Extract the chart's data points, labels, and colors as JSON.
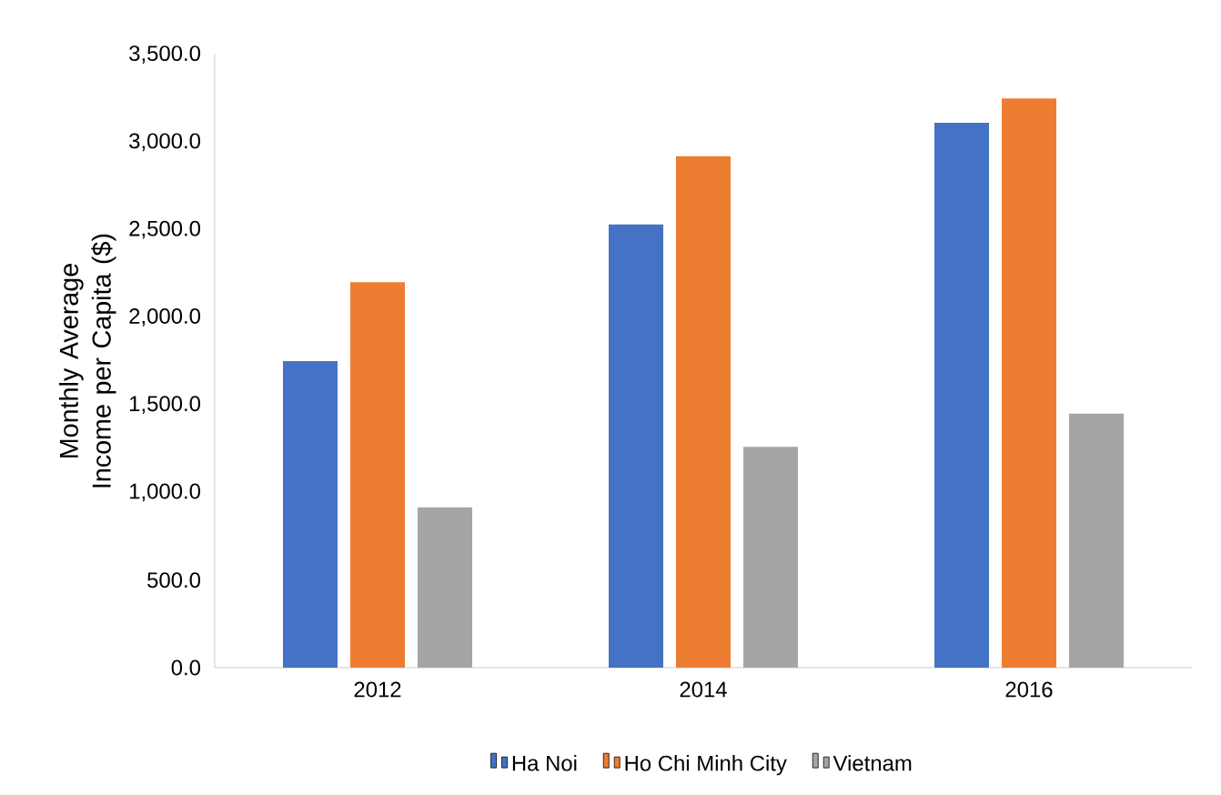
{
  "chart_data": {
    "type": "bar",
    "ylabel": "Monthly Average Income per Capita ($)",
    "categories": [
      "2012",
      "2014",
      "2016"
    ],
    "series": [
      {
        "name": "Ha Noi",
        "color": "#4472c4",
        "values": [
          1750,
          2530,
          3110
        ]
      },
      {
        "name": "Ho Chi Minh City",
        "color": "#ed7d31",
        "values": [
          2200,
          2920,
          3250
        ]
      },
      {
        "name": "Vietnam",
        "color": "#a5a5a5",
        "values": [
          915,
          1260,
          1450
        ]
      }
    ],
    "ylim": [
      0,
      3500
    ],
    "yticks": [
      {
        "value": 0,
        "label": "0.0"
      },
      {
        "value": 500,
        "label": "500.0"
      },
      {
        "value": 1000,
        "label": "1,000.0"
      },
      {
        "value": 1500,
        "label": "1,500.0"
      },
      {
        "value": 2000,
        "label": "2,000.0"
      },
      {
        "value": 2500,
        "label": "2,500.0"
      },
      {
        "value": 3000,
        "label": "3,000.0"
      },
      {
        "value": 3500,
        "label": "3,500.0"
      }
    ],
    "grid": false,
    "legend": "bottom"
  }
}
